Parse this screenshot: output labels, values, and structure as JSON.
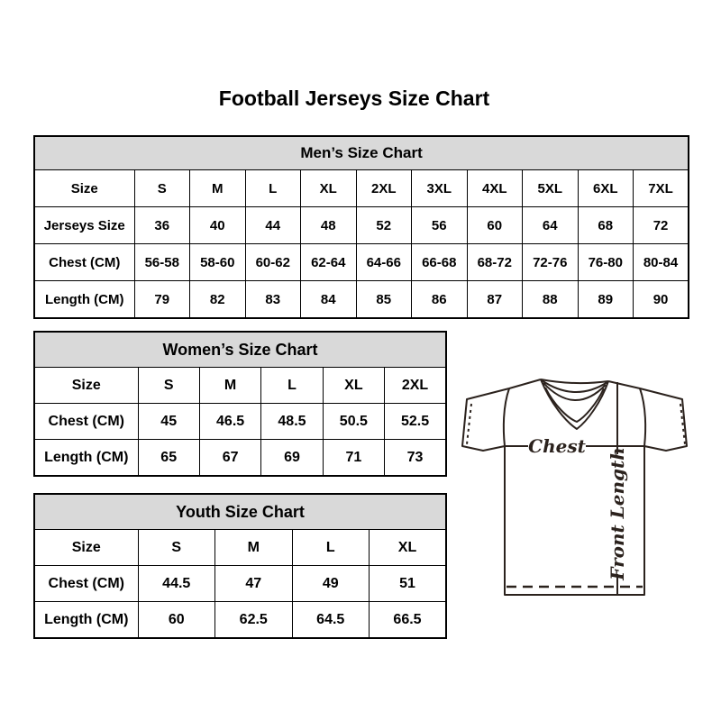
{
  "page": {
    "title": "Football Jerseys Size Chart"
  },
  "chart_data": [
    {
      "type": "table",
      "title": "Men’s Size Chart",
      "rows": [
        [
          "Size",
          "S",
          "M",
          "L",
          "XL",
          "2XL",
          "3XL",
          "4XL",
          "5XL",
          "6XL",
          "7XL"
        ],
        [
          "Jerseys Size",
          "36",
          "40",
          "44",
          "48",
          "52",
          "56",
          "60",
          "64",
          "68",
          "72"
        ],
        [
          "Chest (CM)",
          "56-58",
          "58-60",
          "60-62",
          "62-64",
          "64-66",
          "66-68",
          "68-72",
          "72-76",
          "76-80",
          "80-84"
        ],
        [
          "Length (CM)",
          "79",
          "82",
          "83",
          "84",
          "85",
          "86",
          "87",
          "88",
          "89",
          "90"
        ]
      ]
    },
    {
      "type": "table",
      "title": "Women’s Size Chart",
      "rows": [
        [
          "Size",
          "S",
          "M",
          "L",
          "XL",
          "2XL"
        ],
        [
          "Chest (CM)",
          "45",
          "46.5",
          "48.5",
          "50.5",
          "52.5"
        ],
        [
          "Length (CM)",
          "65",
          "67",
          "69",
          "71",
          "73"
        ]
      ]
    },
    {
      "type": "table",
      "title": "Youth Size Chart",
      "rows": [
        [
          "Size",
          "S",
          "M",
          "L",
          "XL"
        ],
        [
          "Chest (CM)",
          "44.5",
          "47",
          "49",
          "51"
        ],
        [
          "Length (CM)",
          "60",
          "62.5",
          "64.5",
          "66.5"
        ]
      ]
    }
  ],
  "diagram": {
    "chest_label": "Chest",
    "front_length_label": "Front Length"
  },
  "colors": {
    "table_header_bg": "#d9d9d9",
    "table_border": "#000000",
    "text": "#000000",
    "jersey_line": "#2b221d",
    "background": "#ffffff"
  }
}
